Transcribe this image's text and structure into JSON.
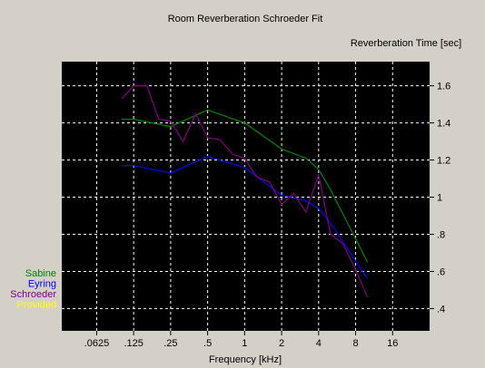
{
  "chart_data": {
    "type": "line",
    "title": "Room Reverberation Schroeder Fit",
    "ylabel": "Reverberation Time [sec]",
    "xlabel": "Frequency [kHz]",
    "x_scale": "log2",
    "x_ticks": [
      {
        "value": 0.0625,
        "label": ".0625"
      },
      {
        "value": 0.125,
        "label": ".125"
      },
      {
        "value": 0.25,
        "label": ".25"
      },
      {
        "value": 0.5,
        "label": ".5"
      },
      {
        "value": 1,
        "label": "1"
      },
      {
        "value": 2,
        "label": "2"
      },
      {
        "value": 4,
        "label": "4"
      },
      {
        "value": 8,
        "label": "8"
      },
      {
        "value": 16,
        "label": "16"
      }
    ],
    "xlim": [
      0.0325,
      32
    ],
    "y_ticks": [
      {
        "value": 0.4,
        "label": ".4"
      },
      {
        "value": 0.6,
        "label": ".6"
      },
      {
        "value": 0.8,
        "label": ".8"
      },
      {
        "value": 1.0,
        "label": "1"
      },
      {
        "value": 1.2,
        "label": "1.2"
      },
      {
        "value": 1.4,
        "label": "1.4"
      },
      {
        "value": 1.6,
        "label": "1.6"
      }
    ],
    "ylim": [
      0.28,
      1.73
    ],
    "y_axis_side": "right",
    "grid": true,
    "legend_position": "bottom-left",
    "series": [
      {
        "name": "Sabine",
        "color": "#008000",
        "x": [
          0.1,
          0.125,
          0.25,
          0.5,
          1,
          2,
          3.15,
          4,
          5,
          10
        ],
        "y": [
          1.42,
          1.42,
          1.38,
          1.47,
          1.4,
          1.26,
          1.21,
          1.15,
          1.04,
          0.65
        ]
      },
      {
        "name": "Eyring",
        "color": "#0000ff",
        "x": [
          0.1,
          0.125,
          0.25,
          0.5,
          1,
          2,
          3.15,
          4,
          5,
          10
        ],
        "y": [
          1.17,
          1.17,
          1.13,
          1.22,
          1.16,
          1.01,
          0.98,
          0.94,
          0.86,
          0.56
        ]
      },
      {
        "name": "Schroeder",
        "color": "#800080",
        "x": [
          0.1,
          0.125,
          0.16,
          0.2,
          0.25,
          0.315,
          0.4,
          0.5,
          0.63,
          0.8,
          1,
          1.25,
          1.6,
          2,
          2.5,
          3.15,
          4,
          5,
          6.3,
          8,
          10
        ],
        "y": [
          1.53,
          1.6,
          1.6,
          1.42,
          1.41,
          1.3,
          1.45,
          1.32,
          1.31,
          1.23,
          1.21,
          1.11,
          1.08,
          0.96,
          1.02,
          0.92,
          1.12,
          0.8,
          0.75,
          0.61,
          0.46
        ]
      },
      {
        "name": "Provided",
        "color": "#ffff00",
        "x": [],
        "y": []
      }
    ]
  }
}
